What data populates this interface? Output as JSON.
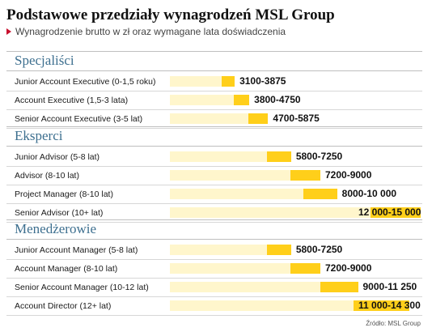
{
  "title": "Podstawowe przedziały wynagrodzeń MSL Group",
  "subtitle": "Wynagrodzenie brutto w zł oraz wymagane lata doświadczenia",
  "source": "Źródło: MSL Group",
  "colors": {
    "range_bar": "#ffcf1a",
    "base_bar": "#fff6cc",
    "section_title": "#3d6f8f",
    "marker": "#c8102e"
  },
  "chart_data": {
    "type": "bar",
    "orientation": "horizontal",
    "title": "Podstawowe przedziały wynagrodzeń MSL Group",
    "subtitle": "Wynagrodzenie brutto w zł oraz wymagane lata doświadczenia",
    "xlim": [
      0,
      15000
    ],
    "groups": [
      {
        "name": "Specjaliści",
        "rows": [
          {
            "label": "Junior Account Executive (0-1,5 roku)",
            "min": 3100,
            "max": 3875,
            "value_label": "3100-3875"
          },
          {
            "label": "Account Executive (1,5-3 lata)",
            "min": 3800,
            "max": 4750,
            "value_label": "3800-4750"
          },
          {
            "label": "Senior Account Executive (3-5 lat)",
            "min": 4700,
            "max": 5875,
            "value_label": "4700-5875"
          }
        ]
      },
      {
        "name": "Eksperci",
        "rows": [
          {
            "label": "Junior Advisor (5-8 lat)",
            "min": 5800,
            "max": 7250,
            "value_label": "5800-7250"
          },
          {
            "label": "Advisor (8-10 lat)",
            "min": 7200,
            "max": 9000,
            "value_label": "7200-9000"
          },
          {
            "label": "Project Manager (8-10 lat)",
            "min": 8000,
            "max": 10000,
            "value_label": "8000-10 000"
          },
          {
            "label": "Senior Advisor (10+ lat)",
            "min": 12000,
            "max": 15000,
            "value_label": "12 000-15 000"
          }
        ]
      },
      {
        "name": "Menedżerowie",
        "rows": [
          {
            "label": "Junior Account Manager (5-8 lat)",
            "min": 5800,
            "max": 7250,
            "value_label": "5800-7250"
          },
          {
            "label": "Account Manager (8-10 lat)",
            "min": 7200,
            "max": 9000,
            "value_label": "7200-9000"
          },
          {
            "label": "Senior Account Manager (10-12 lat)",
            "min": 9000,
            "max": 11250,
            "value_label": "9000-11 250"
          },
          {
            "label": "Account Director (12+ lat)",
            "min": 11000,
            "max": 14300,
            "value_label": "11 000-14 300"
          }
        ]
      }
    ]
  }
}
